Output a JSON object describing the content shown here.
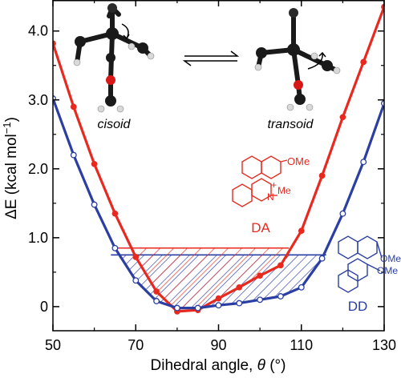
{
  "chart_data": {
    "type": "line",
    "xlabel_prefix": "Dihedral angle, ",
    "xlabel_symbol": "θ",
    "xlabel_suffix": " (°)",
    "ylabel_main": "ΔE (kcal mol",
    "ylabel_sup": "−1",
    "ylabel_close": ")",
    "xlim": [
      50,
      130
    ],
    "ylim": [
      -0.35,
      4.45
    ],
    "x_ticks": [
      50,
      70,
      90,
      110,
      130
    ],
    "x_tick_labels": [
      "50",
      "70",
      "90",
      "110",
      "130"
    ],
    "x_minor_ticks": [
      60,
      80,
      100,
      120
    ],
    "y_ticks": [
      0,
      1,
      2,
      3,
      4
    ],
    "y_tick_labels": [
      "0",
      "1.0",
      "2.0",
      "3.0",
      "4.0"
    ],
    "y_minor_ticks": [
      0.5,
      1.5,
      2.5,
      3.5
    ],
    "series": [
      {
        "name": "DA",
        "color": "#e8291f",
        "marker": "filled-circle",
        "x": [
          50,
          55,
          60,
          65,
          70,
          75,
          80,
          85,
          90,
          95,
          100,
          105,
          110,
          115,
          120,
          125,
          130
        ],
        "y": [
          3.82,
          2.9,
          2.07,
          1.35,
          0.72,
          0.22,
          -0.07,
          -0.05,
          0.12,
          0.28,
          0.45,
          0.6,
          1.1,
          1.9,
          2.75,
          3.55,
          4.35
        ],
        "hatch_from": 65,
        "hatch_to": 107,
        "hatch_level": 0.85
      },
      {
        "name": "DD",
        "color": "#2b3fa3",
        "marker": "open-circle",
        "x": [
          50,
          55,
          60,
          65,
          70,
          75,
          80,
          85,
          90,
          95,
          100,
          105,
          110,
          115,
          120,
          125,
          130
        ],
        "y": [
          3.02,
          2.2,
          1.48,
          0.85,
          0.38,
          0.08,
          -0.02,
          -0.02,
          0.02,
          0.05,
          0.1,
          0.15,
          0.28,
          0.7,
          1.35,
          2.1,
          2.95
        ],
        "hatch_from": 64,
        "hatch_to": 116,
        "hatch_level": 0.75
      }
    ],
    "legend": [
      "DA",
      "DD"
    ]
  },
  "annotations": {
    "cisoid": "cisoid",
    "transoid": "transoid",
    "ome_da": "OMe",
    "me_da": "Me",
    "n_da": "N",
    "plus_da": "+",
    "ome_dd_1": "OMe",
    "ome_dd_2": "OMe",
    "label_da": "DA",
    "label_dd": "DD"
  },
  "colors": {
    "da": "#e8291f",
    "dd": "#2b3fa3",
    "axis": "#000000",
    "atom_dark": "#1a1a1a",
    "atom_light": "#d9d9d9",
    "atom_red": "#d81818"
  }
}
